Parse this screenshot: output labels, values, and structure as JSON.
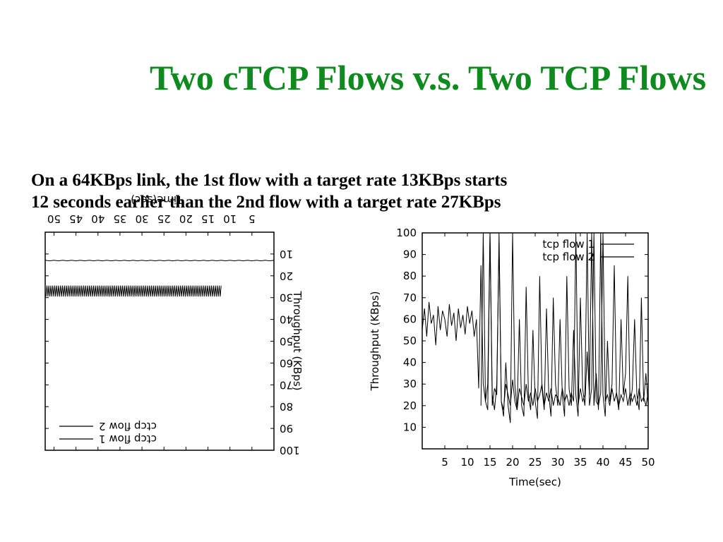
{
  "slide": {
    "title": "Two cTCP Flows v.s. Two TCP Flows",
    "title_color": "#0f8a1e",
    "subtitle_lines": [
      "On a 64KBps link, the 1st flow with a target rate 13KBps starts",
      "12 seconds earlier than the 2nd flow with a target rate 27KBps"
    ]
  },
  "chart_data": [
    {
      "type": "line",
      "orientation": "rotated-180",
      "xlabel": "Time(sec)",
      "ylabel": "Throughput (KBps)",
      "xlim": [
        0,
        52
      ],
      "ylim": [
        0,
        100
      ],
      "xticks": [
        5,
        10,
        15,
        20,
        25,
        30,
        35,
        40,
        45,
        50
      ],
      "yticks": [
        10,
        20,
        30,
        40,
        50,
        60,
        70,
        80,
        90,
        100
      ],
      "legend_position": "top-right",
      "grid": false,
      "series": [
        {
          "name": "ctcp flow 1",
          "style": "solid",
          "mean": 13,
          "amplitude": 0.3,
          "x_start": 0,
          "x_end": 52
        },
        {
          "name": "ctcp flow 2",
          "style": "oscillating",
          "mean": 27,
          "amplitude": 2.5,
          "x_start": 12,
          "x_end": 52
        }
      ]
    },
    {
      "type": "line",
      "xlabel": "Time(sec)",
      "ylabel": "Throughput (KBps)",
      "xlim": [
        0,
        50
      ],
      "ylim": [
        0,
        100
      ],
      "xticks": [
        5,
        10,
        15,
        20,
        25,
        30,
        35,
        40,
        45,
        50
      ],
      "yticks": [
        10,
        20,
        30,
        40,
        50,
        60,
        70,
        80,
        90,
        100
      ],
      "legend_position": "top-right",
      "grid": false,
      "series": [
        {
          "name": "tcp flow 1",
          "x": [
            0,
            0.5,
            1,
            1.5,
            2,
            2.5,
            3,
            3.5,
            4,
            4.5,
            5,
            5.5,
            6,
            6.5,
            7,
            7.5,
            8,
            8.5,
            9,
            9.5,
            10,
            10.5,
            11,
            11.5,
            12,
            12.5,
            13,
            13.5,
            14,
            14.5,
            15,
            15.5,
            16,
            16.5,
            17,
            17.5,
            18,
            18.5,
            19,
            19.5,
            20,
            20.5,
            21,
            21.5,
            22,
            22.5,
            23,
            23.5,
            24,
            24.5,
            25,
            25.5,
            26,
            26.5,
            27,
            27.5,
            28,
            28.5,
            29,
            29.5,
            30,
            30.5,
            31,
            31.5,
            32,
            32.5,
            33,
            33.5,
            34,
            34.5,
            35,
            35.5,
            36,
            36.5,
            37,
            37.5,
            38,
            38.5,
            39,
            39.5,
            40,
            40.5,
            41,
            41.5,
            42,
            42.5,
            43,
            43.5,
            44,
            44.5,
            45,
            45.5,
            46,
            46.5,
            47,
            47.5,
            48,
            48.5,
            49,
            49.5,
            50
          ],
          "y": [
            55,
            65,
            52,
            68,
            58,
            62,
            48,
            66,
            55,
            64,
            60,
            52,
            67,
            57,
            63,
            50,
            65,
            56,
            62,
            53,
            66,
            58,
            64,
            52,
            60,
            28,
            85,
            30,
            22,
            18,
            100,
            25,
            18,
            30,
            95,
            22,
            15,
            40,
            20,
            12,
            100,
            30,
            18,
            60,
            20,
            15,
            75,
            25,
            18,
            55,
            22,
            14,
            80,
            28,
            18,
            65,
            25,
            15,
            70,
            30,
            20,
            60,
            25,
            15,
            80,
            28,
            20,
            55,
            25,
            15,
            70,
            28,
            20,
            45,
            25,
            100,
            20,
            35,
            18,
            100,
            25,
            15,
            50,
            22,
            30,
            85,
            25,
            18,
            60,
            25,
            35,
            80,
            20,
            28,
            60,
            25,
            18,
            70,
            22,
            35,
            20
          ]
        },
        {
          "name": "tcp flow 2",
          "x": [
            13,
            13.5,
            14,
            14.5,
            15,
            15.5,
            16,
            16.5,
            17,
            17.5,
            18,
            18.5,
            19,
            19.5,
            20,
            20.5,
            21,
            21.5,
            22,
            22.5,
            23,
            23.5,
            24,
            24.5,
            25,
            25.5,
            26,
            26.5,
            27,
            27.5,
            28,
            28.5,
            29,
            29.5,
            30,
            30.5,
            31,
            31.5,
            32,
            32.5,
            33,
            33.5,
            34,
            34.5,
            35,
            35.5,
            36,
            36.5,
            37,
            37.5,
            38,
            38.5,
            39,
            39.5,
            40,
            40.5,
            41,
            41.5,
            42,
            42.5,
            43,
            43.5,
            44,
            44.5,
            45,
            45.5,
            46,
            46.5,
            47,
            47.5,
            48,
            48.5,
            49,
            49.5,
            50
          ],
          "y": [
            20,
            100,
            22,
            30,
            100,
            20,
            28,
            25,
            100,
            22,
            18,
            30,
            25,
            20,
            32,
            22,
            18,
            28,
            24,
            20,
            30,
            22,
            26,
            20,
            28,
            22,
            25,
            30,
            20,
            26,
            22,
            28,
            20,
            25,
            24,
            20,
            28,
            22,
            25,
            20,
            26,
            22,
            100,
            20,
            28,
            22,
            25,
            100,
            20,
            28,
            100,
            22,
            20,
            26,
            100,
            22,
            25,
            20,
            28,
            22,
            26,
            20,
            25,
            22,
            28,
            20,
            26,
            22,
            25,
            20,
            28,
            22,
            24,
            20,
            26
          ]
        }
      ]
    }
  ]
}
